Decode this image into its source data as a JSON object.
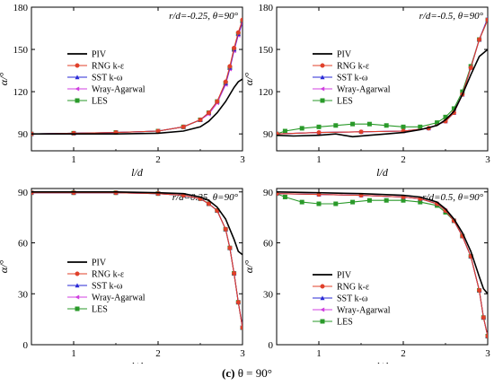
{
  "caption": {
    "label": "(c)",
    "text": "θ = 90°"
  },
  "colors": {
    "PIV": "#000000",
    "RNG k-ε": "#e0402a",
    "SST k-ω": "#2a2ad6",
    "Wray-Agarwal": "#d040e0",
    "LES": "#2a9a2a"
  },
  "chart_data": [
    {
      "type": "line",
      "title": "r/d=-0.25, θ=90°",
      "xlabel": "l/d",
      "ylabel": "α/°",
      "xlim": [
        0.5,
        3.0
      ],
      "ylim": [
        78,
        180
      ],
      "xticks": [
        1,
        2,
        3
      ],
      "yticks": [
        90,
        120,
        150,
        180
      ],
      "grid": false,
      "legend_position": "left",
      "series": [
        {
          "name": "PIV",
          "x": [
            0.5,
            1.0,
            1.5,
            2.0,
            2.3,
            2.5,
            2.6,
            2.7,
            2.8,
            2.9,
            2.95,
            3.0
          ],
          "y": [
            90,
            90,
            90,
            90.5,
            92,
            95,
            99,
            105,
            113,
            123,
            127,
            129
          ]
        },
        {
          "name": "RNG k-ε",
          "x": [
            0.5,
            1.0,
            1.5,
            2.0,
            2.3,
            2.5,
            2.6,
            2.7,
            2.8,
            2.85,
            2.9,
            2.95,
            3.0
          ],
          "y": [
            90,
            90.5,
            91,
            92,
            95,
            100,
            105,
            113,
            127,
            138,
            151,
            162,
            171
          ]
        },
        {
          "name": "SST k-ω",
          "x": [
            0.5,
            1.0,
            1.5,
            2.0,
            2.3,
            2.5,
            2.6,
            2.7,
            2.8,
            2.85,
            2.9,
            2.95,
            3.0
          ],
          "y": [
            90,
            90.5,
            91,
            92,
            95,
            100,
            105,
            113,
            126,
            137,
            150,
            161,
            170
          ]
        },
        {
          "name": "Wray-Agarwal",
          "x": [
            0.5,
            1.0,
            1.5,
            2.0,
            2.3,
            2.5,
            2.6,
            2.7,
            2.8,
            2.85,
            2.9,
            2.95,
            3.0
          ],
          "y": [
            90,
            90.5,
            91,
            92,
            95,
            100,
            104,
            112,
            125,
            136,
            149,
            160,
            169
          ]
        },
        {
          "name": "LES",
          "x": [
            0.5,
            1.0,
            1.5,
            2.0,
            2.3,
            2.5,
            2.6,
            2.7,
            2.8,
            2.85,
            2.9,
            2.95,
            3.0
          ],
          "y": [
            90,
            90.5,
            91,
            92,
            95,
            100,
            105,
            113,
            126,
            137,
            150,
            161,
            170
          ]
        }
      ]
    },
    {
      "type": "line",
      "title": "r/d=-0.5, θ=90°",
      "xlabel": "l/d",
      "ylabel": "α/°",
      "xlim": [
        0.5,
        3.0
      ],
      "ylim": [
        78,
        180
      ],
      "xticks": [
        1,
        2,
        3
      ],
      "yticks": [
        90,
        120,
        150,
        180
      ],
      "grid": false,
      "legend_position": "top-left",
      "series": [
        {
          "name": "PIV",
          "x": [
            0.5,
            0.7,
            1.0,
            1.2,
            1.4,
            1.6,
            1.8,
            2.0,
            2.2,
            2.4,
            2.5,
            2.6,
            2.7,
            2.8,
            2.9,
            3.0
          ],
          "y": [
            89,
            88.5,
            89,
            90,
            88,
            89,
            90,
            91,
            93,
            96,
            100,
            106,
            118,
            132,
            145,
            150
          ]
        },
        {
          "name": "RNG k-ε",
          "x": [
            0.5,
            1.0,
            1.5,
            2.0,
            2.3,
            2.5,
            2.6,
            2.7,
            2.8,
            2.9,
            3.0
          ],
          "y": [
            90,
            91,
            91.5,
            92,
            94,
            99,
            105,
            118,
            137,
            157,
            171
          ]
        },
        {
          "name": "SST k-ω",
          "x": [
            0.5,
            1.0,
            1.5,
            2.0,
            2.3,
            2.5,
            2.6,
            2.7,
            2.8,
            2.9,
            3.0
          ],
          "y": [
            90,
            91,
            91.5,
            92,
            94,
            99,
            105,
            118,
            137,
            157,
            172
          ]
        },
        {
          "name": "Wray-Agarwal",
          "x": [
            0.5,
            1.0,
            1.5,
            2.0,
            2.3,
            2.5,
            2.6,
            2.7,
            2.8,
            2.9,
            3.0
          ],
          "y": [
            90,
            91,
            91.5,
            92,
            94,
            99,
            105,
            118,
            137,
            157,
            172
          ]
        },
        {
          "name": "LES",
          "x": [
            0.5,
            0.6,
            0.8,
            1.0,
            1.2,
            1.4,
            1.6,
            1.8,
            2.0,
            2.2,
            2.4,
            2.5,
            2.6,
            2.7,
            2.8,
            2.9,
            3.0
          ],
          "y": [
            90,
            92,
            94,
            95,
            96,
            97,
            97,
            96,
            95,
            95,
            98,
            102,
            108,
            120,
            138,
            157,
            171
          ]
        }
      ]
    },
    {
      "type": "line",
      "title": "r/d=0.25, θ=90°",
      "xlabel": "l/d",
      "ylabel": "α/°",
      "xlim": [
        0.5,
        3.0
      ],
      "ylim": [
        0,
        92
      ],
      "xticks": [
        1,
        2,
        3
      ],
      "yticks": [
        0,
        30,
        60,
        90
      ],
      "grid": false,
      "legend_position": "bottom-left",
      "series": [
        {
          "name": "PIV",
          "x": [
            0.5,
            1.0,
            1.5,
            2.0,
            2.3,
            2.5,
            2.6,
            2.7,
            2.8,
            2.9,
            2.95,
            3.0
          ],
          "y": [
            90,
            90,
            90,
            89.5,
            89,
            87,
            85,
            81,
            74,
            62,
            55,
            53
          ]
        },
        {
          "name": "RNG k-ε",
          "x": [
            0.5,
            1.0,
            1.5,
            2.0,
            2.3,
            2.5,
            2.6,
            2.7,
            2.8,
            2.85,
            2.9,
            2.95,
            3.0
          ],
          "y": [
            89.5,
            89.5,
            89.5,
            89,
            88,
            86,
            83,
            79,
            68,
            57,
            42,
            25,
            10
          ]
        },
        {
          "name": "SST k-ω",
          "x": [
            0.5,
            1.0,
            1.5,
            2.0,
            2.3,
            2.5,
            2.6,
            2.7,
            2.8,
            2.85,
            2.9,
            2.95,
            3.0
          ],
          "y": [
            89.5,
            89.5,
            89.5,
            89,
            88,
            86,
            83,
            79,
            68,
            57,
            42,
            25,
            10
          ]
        },
        {
          "name": "Wray-Agarwal",
          "x": [
            0.5,
            1.0,
            1.5,
            2.0,
            2.3,
            2.5,
            2.6,
            2.7,
            2.8,
            2.85,
            2.9,
            2.95,
            3.0
          ],
          "y": [
            89.5,
            89.5,
            89.5,
            89,
            88,
            86,
            83,
            79,
            68,
            57,
            42,
            25,
            11
          ]
        },
        {
          "name": "LES",
          "x": [
            0.5,
            1.0,
            1.5,
            2.0,
            2.3,
            2.5,
            2.6,
            2.7,
            2.8,
            2.85,
            2.9,
            2.95,
            3.0
          ],
          "y": [
            89.5,
            89.5,
            89.5,
            89,
            88,
            86,
            83,
            79,
            68,
            57,
            42,
            25,
            10
          ]
        }
      ]
    },
    {
      "type": "line",
      "title": "r/d=0.5, θ=90°",
      "xlabel": "l/d",
      "ylabel": "α/°",
      "xlim": [
        0.5,
        3.0
      ],
      "ylim": [
        0,
        92
      ],
      "xticks": [
        1,
        2,
        3
      ],
      "yticks": [
        0,
        30,
        60,
        90
      ],
      "grid": false,
      "legend_position": "bottom-left",
      "series": [
        {
          "name": "PIV",
          "x": [
            0.5,
            1.0,
            1.5,
            2.0,
            2.2,
            2.4,
            2.5,
            2.6,
            2.7,
            2.8,
            2.9,
            2.95,
            3.0
          ],
          "y": [
            90,
            89.5,
            89,
            88,
            87,
            84,
            80,
            74,
            66,
            55,
            40,
            33,
            30
          ]
        },
        {
          "name": "RNG k-ε",
          "x": [
            0.5,
            1.0,
            1.5,
            2.0,
            2.2,
            2.4,
            2.5,
            2.6,
            2.7,
            2.8,
            2.9,
            2.95,
            3.0
          ],
          "y": [
            89,
            88.5,
            88,
            87,
            86,
            83,
            79,
            73,
            64,
            52,
            32,
            16,
            5
          ]
        },
        {
          "name": "SST k-ω",
          "x": [
            0.5,
            1.0,
            1.5,
            2.0,
            2.2,
            2.4,
            2.5,
            2.6,
            2.7,
            2.8,
            2.9,
            2.95,
            3.0
          ],
          "y": [
            89,
            88.5,
            88,
            87,
            86,
            83,
            79,
            73,
            64,
            52,
            32,
            16,
            5
          ]
        },
        {
          "name": "Wray-Agarwal",
          "x": [
            0.5,
            1.0,
            1.5,
            2.0,
            2.2,
            2.4,
            2.5,
            2.6,
            2.7,
            2.8,
            2.9,
            2.95,
            3.0
          ],
          "y": [
            89,
            88.5,
            88,
            87,
            86,
            83,
            79,
            73,
            64,
            52,
            32,
            16,
            5
          ]
        },
        {
          "name": "LES",
          "x": [
            0.5,
            0.6,
            0.8,
            1.0,
            1.2,
            1.4,
            1.6,
            1.8,
            2.0,
            2.2,
            2.4,
            2.5,
            2.6,
            2.7,
            2.8,
            2.9,
            2.95,
            3.0
          ],
          "y": [
            89,
            87,
            84,
            83,
            83,
            84,
            85,
            85,
            85,
            84,
            82,
            78,
            73,
            64,
            52,
            32,
            16,
            5
          ]
        }
      ]
    }
  ]
}
